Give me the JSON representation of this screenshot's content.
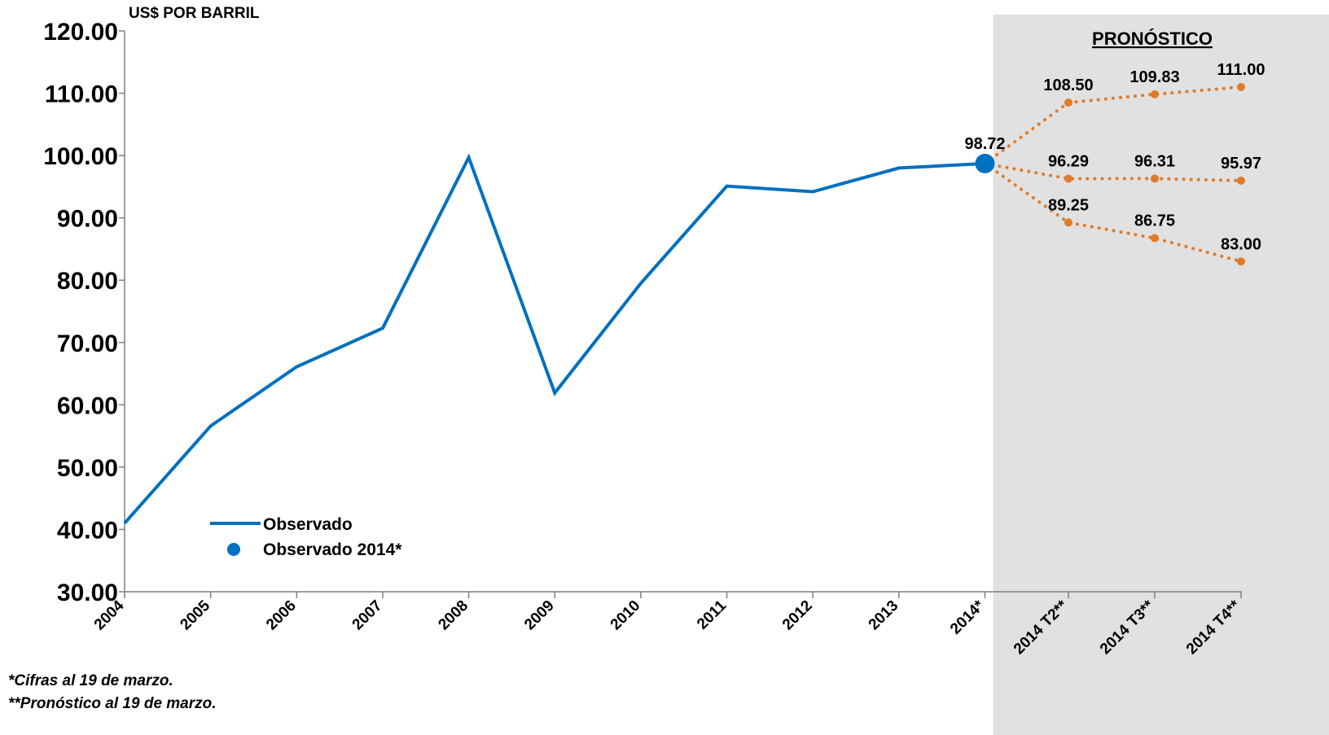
{
  "chart_data": {
    "type": "line",
    "ylabel": "US$ POR BARRIL",
    "ylim": [
      30,
      120
    ],
    "yticks": [
      "120.00",
      "110.00",
      "100.00",
      "90.00",
      "80.00",
      "70.00",
      "60.00",
      "50.00",
      "40.00",
      "30.00"
    ],
    "categories": [
      "2004",
      "2005",
      "2006",
      "2007",
      "2008",
      "2009",
      "2010",
      "2011",
      "2012",
      "2013",
      "2014*",
      "2014 T2**",
      "2014 T3**",
      "2014 T4**"
    ],
    "forecast_title": "PRONÓSTICO",
    "forecast_start_category": "2014*",
    "series": [
      {
        "name": "Observado",
        "color": "#0070C0",
        "style": "solid",
        "x": [
          "2004",
          "2005",
          "2006",
          "2007",
          "2008",
          "2009",
          "2010",
          "2011",
          "2012",
          "2013",
          "2014*"
        ],
        "values": [
          41.0,
          56.6,
          66.1,
          72.3,
          99.7,
          61.9,
          79.5,
          95.1,
          94.2,
          98.0,
          98.72
        ]
      },
      {
        "name": "Observado 2014*",
        "color": "#0070C0",
        "style": "marker",
        "x": [
          "2014*"
        ],
        "values": [
          98.72
        ],
        "labels": [
          "98.72"
        ]
      },
      {
        "color": "#E07B2A",
        "style": "dotted",
        "x": [
          "2014*",
          "2014 T2**",
          "2014 T3**",
          "2014 T4**"
        ],
        "values": [
          98.72,
          108.5,
          109.83,
          111.0
        ],
        "labels": [
          null,
          "108.50",
          "109.83",
          "111.00"
        ]
      },
      {
        "color": "#E07B2A",
        "style": "dotted",
        "x": [
          "2014*",
          "2014 T2**",
          "2014 T3**",
          "2014 T4**"
        ],
        "values": [
          98.72,
          96.29,
          96.31,
          95.97
        ],
        "labels": [
          null,
          "96.29",
          "96.31",
          "95.97"
        ]
      },
      {
        "color": "#E07B2A",
        "style": "dotted",
        "x": [
          "2014*",
          "2014 T2**",
          "2014 T3**",
          "2014 T4**"
        ],
        "values": [
          98.72,
          89.25,
          86.75,
          83.0
        ],
        "labels": [
          null,
          "89.25",
          "86.75",
          "83.00"
        ]
      }
    ],
    "legend": {
      "placement": "bottom-left",
      "entries": [
        {
          "label": "Observado",
          "symbol": "line"
        },
        {
          "label": "Observado 2014*",
          "symbol": "dot"
        }
      ]
    },
    "footnotes": [
      "*Cifras al 19 de marzo.",
      "**Pronóstico al 19 de marzo."
    ],
    "forecast_shade_color": "#E1E1E1",
    "grid": false
  }
}
